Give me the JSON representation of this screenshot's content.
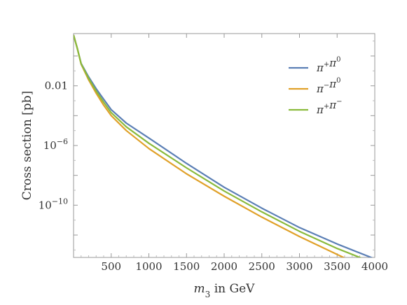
{
  "chart_data": {
    "type": "line",
    "xlabel_var": "m",
    "xlabel_sub": "3",
    "xlabel_rest": " in GeV",
    "ylabel": "Cross section [pb]",
    "y_scale": "log10",
    "xlim": [
      0,
      4000
    ],
    "ylim_log10": [
      -13.5,
      1.5
    ],
    "x_ticks": [
      "500",
      "1000",
      "1500",
      "2000",
      "2500",
      "3000",
      "3500",
      "4000"
    ],
    "y_tick_labels": [
      {
        "base": "0.01",
        "exp": ""
      },
      {
        "base": "10",
        "exp": "−6"
      },
      {
        "base": "10",
        "exp": "−10"
      }
    ],
    "legend_position": "top-right",
    "grid": false,
    "x": [
      0,
      50,
      100,
      200,
      300,
      400,
      500,
      700,
      1000,
      1500,
      2000,
      2500,
      3000,
      3500,
      4000
    ],
    "series": [
      {
        "name_base": [
          "π",
          "π"
        ],
        "name_sup": [
          "+",
          "0"
        ],
        "color": "#5b7fb5",
        "log10_values": [
          1.4,
          0.5,
          -0.5,
          -1.4,
          -2.2,
          -2.9,
          -3.6,
          -4.5,
          -5.5,
          -7.2,
          -8.8,
          -10.2,
          -11.5,
          -12.6,
          -13.6
        ]
      },
      {
        "name_base": [
          "π",
          "π"
        ],
        "name_sup": [
          "−",
          "0"
        ],
        "color": "#e0a129",
        "log10_values": [
          1.4,
          0.5,
          -0.55,
          -1.6,
          -2.5,
          -3.3,
          -4.0,
          -5.0,
          -6.2,
          -7.9,
          -9.4,
          -10.8,
          -12.1,
          -13.3,
          -14.5
        ]
      },
      {
        "name_base": [
          "π",
          "π"
        ],
        "name_sup": [
          "+",
          "−"
        ],
        "color": "#8aba3c",
        "log10_values": [
          1.4,
          0.5,
          -0.52,
          -1.5,
          -2.35,
          -3.1,
          -3.8,
          -4.75,
          -5.85,
          -7.5,
          -9.05,
          -10.45,
          -11.75,
          -12.9,
          -13.9
        ]
      }
    ]
  }
}
